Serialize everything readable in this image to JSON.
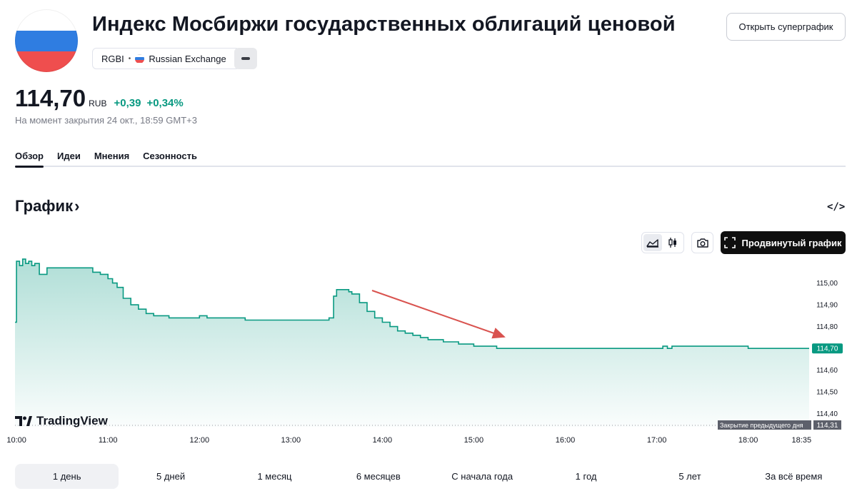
{
  "header": {
    "title": "Индекс Мосбиржи государственных облигаций ценовой",
    "symbol": "RGBI",
    "exchange": "Russian Exchange",
    "super_chart_label": "Открыть суперграфик"
  },
  "quote": {
    "price": "114,70",
    "currency": "RUB",
    "change": "+0,39",
    "change_percent": "+0,34%",
    "as_of": "На момент закрытия 24 окт., 18:59 GMT+3"
  },
  "tabs": [
    {
      "label": "Обзор",
      "active": true
    },
    {
      "label": "Идеи",
      "active": false
    },
    {
      "label": "Мнения",
      "active": false
    },
    {
      "label": "Сезонность",
      "active": false
    }
  ],
  "section": {
    "title": "График",
    "chevron": "›",
    "embed_label": "</>"
  },
  "toolbar": {
    "advanced_chart_label": "Продвинутый график",
    "icons": [
      "area-chart-icon",
      "candles-icon",
      "camera-icon",
      "fullscreen-icon"
    ]
  },
  "branding": {
    "logo_text": "TradingView"
  },
  "colors": {
    "accent": "#089981",
    "arrow": "#d9534f",
    "dark_button": "#0f0f0f"
  },
  "chart_data": {
    "type": "area",
    "x_ticks": [
      "10:00",
      "11:00",
      "12:00",
      "13:00",
      "14:00",
      "15:00",
      "16:00",
      "17:00",
      "18:00",
      "18:35"
    ],
    "y_ticks": [
      "115,00",
      "114,90",
      "114,80",
      "114,70",
      "114,60",
      "114,50",
      "114,40"
    ],
    "ylim": [
      114.34,
      115.12
    ],
    "last_price_label": "114,70",
    "prev_close_label": "Закрытие предыдущего дня",
    "prev_close_value": "114,31",
    "series": [
      {
        "x": [
          "09:59",
          "10:00",
          "10:02",
          "10:04",
          "10:06",
          "10:08",
          "10:10",
          "10:12",
          "10:15",
          "10:20",
          "10:30",
          "10:40",
          "10:50",
          "10:55",
          "11:00",
          "11:03",
          "11:06",
          "11:10",
          "11:15",
          "11:20",
          "11:25",
          "11:30",
          "11:40",
          "11:45",
          "11:50",
          "12:00",
          "12:05",
          "12:10",
          "12:20",
          "12:30",
          "12:40",
          "12:50",
          "13:00",
          "13:10",
          "13:20",
          "13:25",
          "13:28",
          "13:30",
          "13:32",
          "13:35",
          "13:38",
          "13:40",
          "13:45",
          "13:50",
          "13:55",
          "14:00",
          "14:05",
          "14:10",
          "14:15",
          "14:20",
          "14:25",
          "14:30",
          "14:35",
          "14:40",
          "14:45",
          "14:50",
          "14:55",
          "15:00",
          "15:05",
          "15:10",
          "15:15",
          "15:20",
          "15:25",
          "15:30",
          "15:35",
          "15:40",
          "15:50",
          "16:00",
          "16:10",
          "16:20",
          "16:30",
          "16:40",
          "16:50",
          "17:00",
          "17:04",
          "17:07",
          "17:10",
          "17:20",
          "17:30",
          "17:40",
          "17:50",
          "18:00",
          "18:10",
          "18:20",
          "18:30",
          "18:35",
          "18:40"
        ],
        "values": [
          114.82,
          115.1,
          115.08,
          115.11,
          115.09,
          115.1,
          115.08,
          115.09,
          115.04,
          115.07,
          115.07,
          115.07,
          115.05,
          115.04,
          115.02,
          115.0,
          114.98,
          114.93,
          114.9,
          114.88,
          114.86,
          114.85,
          114.84,
          114.84,
          114.84,
          114.85,
          114.84,
          114.84,
          114.84,
          114.83,
          114.83,
          114.83,
          114.83,
          114.83,
          114.83,
          114.84,
          114.94,
          114.97,
          114.97,
          114.97,
          114.96,
          114.95,
          114.91,
          114.87,
          114.84,
          114.82,
          114.8,
          114.78,
          114.77,
          114.76,
          114.75,
          114.74,
          114.74,
          114.73,
          114.73,
          114.72,
          114.72,
          114.71,
          114.71,
          114.71,
          114.7,
          114.7,
          114.7,
          114.7,
          114.7,
          114.7,
          114.7,
          114.7,
          114.7,
          114.7,
          114.7,
          114.7,
          114.7,
          114.7,
          114.71,
          114.7,
          114.71,
          114.71,
          114.71,
          114.71,
          114.71,
          114.7,
          114.7,
          114.7,
          114.7,
          114.7,
          114.7
        ]
      }
    ]
  },
  "ranges": [
    {
      "label": "1 день",
      "active": true
    },
    {
      "label": "5 дней",
      "active": false
    },
    {
      "label": "1 месяц",
      "active": false
    },
    {
      "label": "6 месяцев",
      "active": false
    },
    {
      "label": "С начала года",
      "active": false
    },
    {
      "label": "1 год",
      "active": false
    },
    {
      "label": "5 лет",
      "active": false
    },
    {
      "label": "За всё время",
      "active": false
    }
  ]
}
